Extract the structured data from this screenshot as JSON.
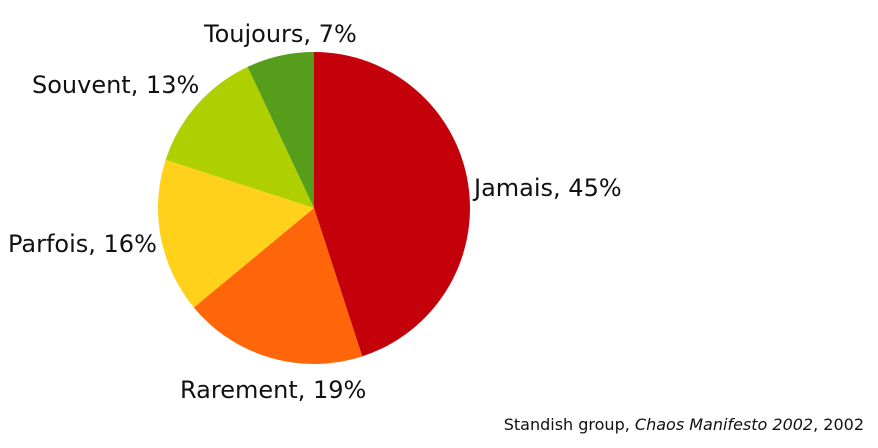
{
  "chart_data": {
    "type": "pie",
    "title": "",
    "legend": "none",
    "start_angle_deg": 0,
    "direction": "clockwise",
    "slices": [
      {
        "label": "Jamais, 45%",
        "value": 45,
        "color": "#C4000A"
      },
      {
        "label": "Rarement, 19%",
        "value": 19,
        "color": "#FF660A"
      },
      {
        "label": "Parfois, 16%",
        "value": 16,
        "color": "#FFD11A"
      },
      {
        "label": "Souvent, 13%",
        "value": 13,
        "color": "#AECF00"
      },
      {
        "label": "Toujours, 7%",
        "value": 7,
        "color": "#579D1C"
      }
    ]
  },
  "source": {
    "prefix": "Standish group, ",
    "work": "Chaos Manifesto 2002",
    "suffix": ", 2002"
  }
}
